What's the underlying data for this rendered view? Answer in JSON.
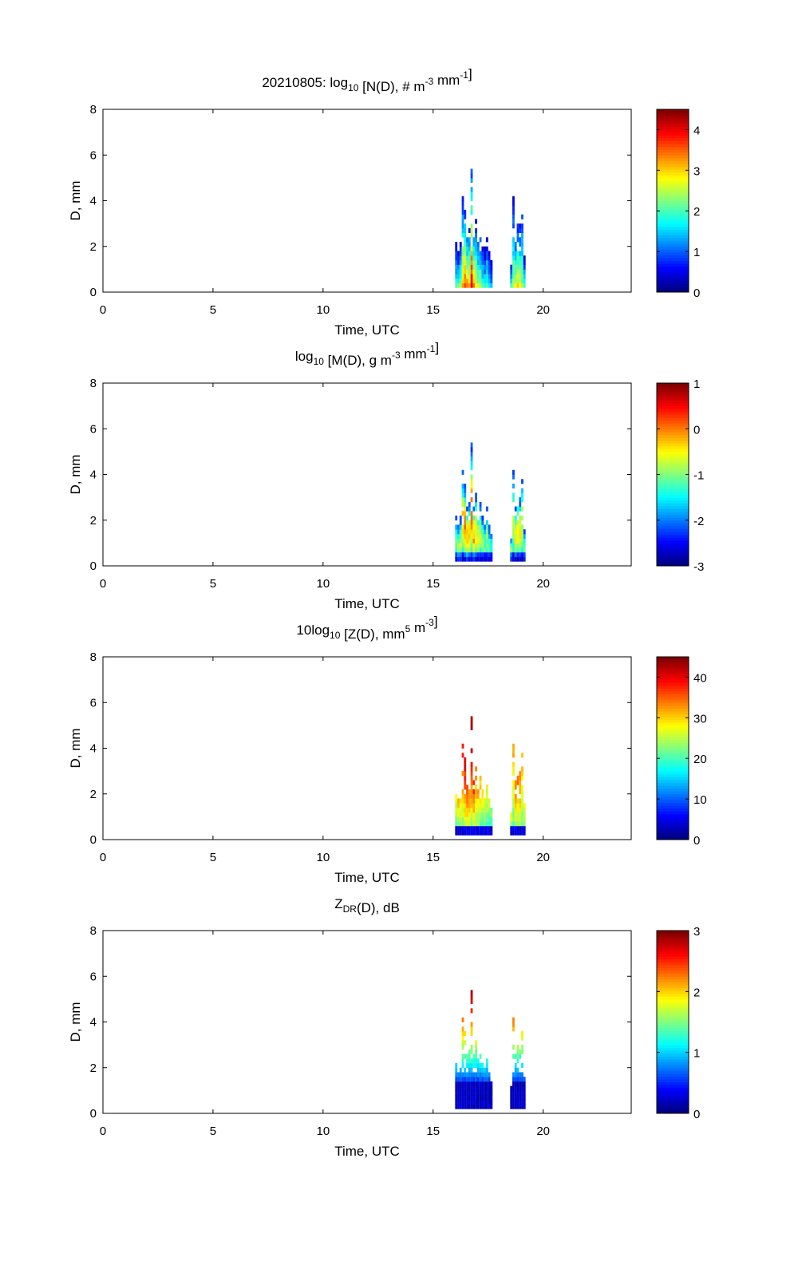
{
  "chart_data": [
    {
      "type": "heatmap",
      "title_parts": [
        {
          "t": "20210805: log"
        },
        {
          "sub": "10"
        },
        {
          "t": " [N(D), # m"
        },
        {
          "sup": "-3"
        },
        {
          "t": " mm"
        },
        {
          "sup": "-1"
        },
        {
          "t": "]"
        }
      ],
      "xlabel": "Time, UTC",
      "ylabel": "D, mm",
      "xlim": [
        0,
        24
      ],
      "ylim": [
        0,
        8
      ],
      "xticks": [
        "0",
        "5",
        "10",
        "15",
        "20"
      ],
      "yticks": [
        "0",
        "2",
        "4",
        "6",
        "8"
      ],
      "clim": [
        0,
        4.5
      ],
      "cticks": [
        "0",
        "1",
        "2",
        "3",
        "4"
      ],
      "model": "N"
    },
    {
      "type": "heatmap",
      "title_parts": [
        {
          "t": "log"
        },
        {
          "sub": "10"
        },
        {
          "t": " [M(D), g m"
        },
        {
          "sup": "-3"
        },
        {
          "t": " mm"
        },
        {
          "sup": "-1"
        },
        {
          "t": "]"
        }
      ],
      "xlabel": "Time, UTC",
      "ylabel": "D, mm",
      "xlim": [
        0,
        24
      ],
      "ylim": [
        0,
        8
      ],
      "xticks": [
        "0",
        "5",
        "10",
        "15",
        "20"
      ],
      "yticks": [
        "0",
        "2",
        "4",
        "6",
        "8"
      ],
      "clim": [
        -3,
        1
      ],
      "cticks": [
        "-3",
        "-2",
        "-1",
        "0",
        "1"
      ],
      "model": "M"
    },
    {
      "type": "heatmap",
      "title_parts": [
        {
          "t": "10log"
        },
        {
          "sub": "10"
        },
        {
          "t": " [Z(D),  mm"
        },
        {
          "sup": "5"
        },
        {
          "t": " m"
        },
        {
          "sup": "-3"
        },
        {
          "t": "]"
        }
      ],
      "xlabel": "Time, UTC",
      "ylabel": "D, mm",
      "xlim": [
        0,
        24
      ],
      "ylim": [
        0,
        8
      ],
      "xticks": [
        "0",
        "5",
        "10",
        "15",
        "20"
      ],
      "yticks": [
        "0",
        "2",
        "4",
        "6",
        "8"
      ],
      "clim": [
        0,
        45
      ],
      "cticks": [
        "0",
        "10",
        "20",
        "30",
        "40"
      ],
      "model": "Z"
    },
    {
      "type": "heatmap",
      "title_parts": [
        {
          "t": "Z"
        },
        {
          "sub": "DR"
        },
        {
          "t": "(D), dB"
        }
      ],
      "xlabel": "Time, UTC",
      "ylabel": "D, mm",
      "xlim": [
        0,
        24
      ],
      "ylim": [
        0,
        8
      ],
      "xticks": [
        "0",
        "5",
        "10",
        "15",
        "20"
      ],
      "yticks": [
        "0",
        "2",
        "4",
        "6",
        "8"
      ],
      "clim": [
        0,
        3
      ],
      "cticks": [
        "0",
        "1",
        "2",
        "3"
      ],
      "model": "ZDR"
    }
  ],
  "columns": [
    [
      16.0,
      2.1,
      0.5
    ],
    [
      16.1,
      1.6,
      0.55
    ],
    [
      16.2,
      2.0,
      0.6
    ],
    [
      16.3,
      4.1,
      0.8
    ],
    [
      16.4,
      3.6,
      0.9
    ],
    [
      16.5,
      2.5,
      0.85
    ],
    [
      16.6,
      2.8,
      0.8
    ],
    [
      16.7,
      5.3,
      1.0
    ],
    [
      16.8,
      2.6,
      0.85
    ],
    [
      16.9,
      3.2,
      0.7
    ],
    [
      17.0,
      2.4,
      0.65
    ],
    [
      17.1,
      2.8,
      0.6
    ],
    [
      17.2,
      2.1,
      0.5
    ],
    [
      17.3,
      1.9,
      0.45
    ],
    [
      17.4,
      2.5,
      0.5
    ],
    [
      17.5,
      1.7,
      0.4
    ],
    [
      17.6,
      1.4,
      0.35
    ],
    [
      18.5,
      1.2,
      0.5
    ],
    [
      18.6,
      4.1,
      0.6
    ],
    [
      18.7,
      2.5,
      0.7
    ],
    [
      18.8,
      3.0,
      0.75
    ],
    [
      18.9,
      2.9,
      0.7
    ],
    [
      19.0,
      3.8,
      0.6
    ],
    [
      19.1,
      1.5,
      0.5
    ]
  ]
}
